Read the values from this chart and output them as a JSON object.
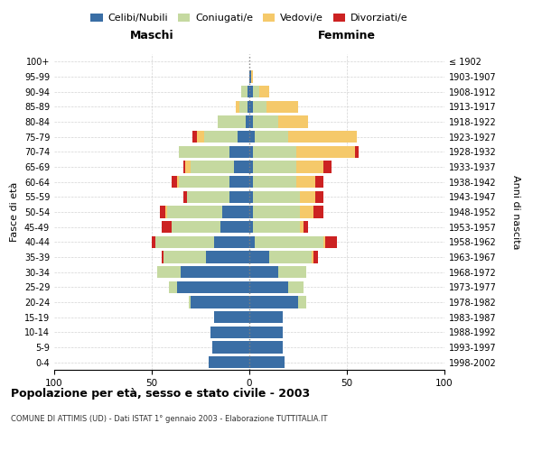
{
  "age_groups": [
    "0-4",
    "5-9",
    "10-14",
    "15-19",
    "20-24",
    "25-29",
    "30-34",
    "35-39",
    "40-44",
    "45-49",
    "50-54",
    "55-59",
    "60-64",
    "65-69",
    "70-74",
    "75-79",
    "80-84",
    "85-89",
    "90-94",
    "95-99",
    "100+"
  ],
  "birth_years": [
    "1998-2002",
    "1993-1997",
    "1988-1992",
    "1983-1987",
    "1978-1982",
    "1973-1977",
    "1968-1972",
    "1963-1967",
    "1958-1962",
    "1953-1957",
    "1948-1952",
    "1943-1947",
    "1938-1942",
    "1933-1937",
    "1928-1932",
    "1923-1927",
    "1918-1922",
    "1913-1917",
    "1908-1912",
    "1903-1907",
    "≤ 1902"
  ],
  "maschi": {
    "celibi": [
      21,
      19,
      20,
      18,
      30,
      37,
      35,
      22,
      18,
      15,
      14,
      10,
      10,
      8,
      10,
      6,
      2,
      1,
      1,
      0,
      0
    ],
    "coniugati": [
      0,
      0,
      0,
      0,
      1,
      4,
      12,
      22,
      30,
      25,
      28,
      22,
      26,
      22,
      26,
      17,
      14,
      4,
      3,
      0,
      0
    ],
    "vedovi": [
      0,
      0,
      0,
      0,
      0,
      0,
      0,
      0,
      0,
      0,
      1,
      0,
      1,
      3,
      0,
      4,
      0,
      2,
      0,
      0,
      0
    ],
    "divorziati": [
      0,
      0,
      0,
      0,
      0,
      0,
      0,
      1,
      2,
      5,
      3,
      2,
      3,
      1,
      0,
      2,
      0,
      0,
      0,
      0,
      0
    ]
  },
  "femmine": {
    "nubili": [
      18,
      17,
      17,
      17,
      25,
      20,
      15,
      10,
      3,
      2,
      2,
      2,
      2,
      2,
      2,
      3,
      2,
      2,
      2,
      1,
      0
    ],
    "coniugate": [
      0,
      0,
      0,
      0,
      4,
      8,
      14,
      22,
      35,
      24,
      24,
      24,
      22,
      22,
      22,
      17,
      13,
      7,
      3,
      0,
      0
    ],
    "vedove": [
      0,
      0,
      0,
      0,
      0,
      0,
      0,
      1,
      1,
      2,
      7,
      8,
      10,
      14,
      30,
      35,
      15,
      16,
      5,
      1,
      0
    ],
    "divorziate": [
      0,
      0,
      0,
      0,
      0,
      0,
      0,
      2,
      6,
      2,
      5,
      4,
      4,
      4,
      2,
      0,
      0,
      0,
      0,
      0,
      0
    ]
  },
  "color_celibi": "#3a6ea5",
  "color_coniugati": "#c5d9a0",
  "color_vedovi": "#f5c96a",
  "color_divorziati": "#cc2222",
  "title_main": "Popolazione per età, sesso e stato civile - 2003",
  "title_sub": "COMUNE DI ATTIMIS (UD) - Dati ISTAT 1° gennaio 2003 - Elaborazione TUTTITALIA.IT",
  "ylabel_left": "Fasce di età",
  "ylabel_right": "Anni di nascita",
  "xlabel_left": "Maschi",
  "xlabel_right": "Femmine",
  "xlim": 100,
  "background_color": "#ffffff",
  "legend_labels": [
    "Celibi/Nubili",
    "Coniugati/e",
    "Vedovi/e",
    "Divorziati/e"
  ]
}
